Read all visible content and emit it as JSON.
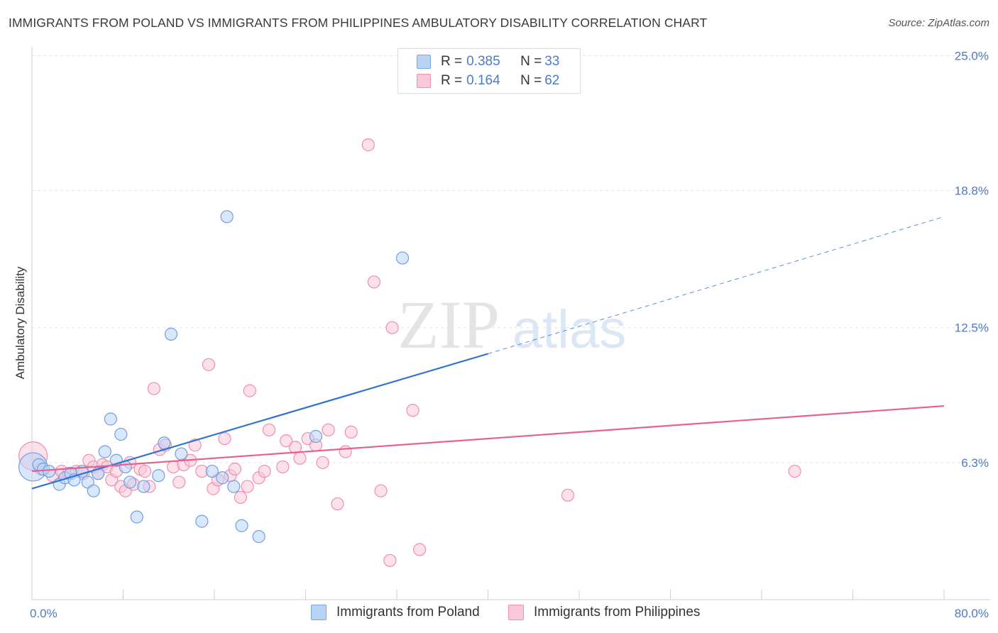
{
  "title": "IMMIGRANTS FROM POLAND VS IMMIGRANTS FROM PHILIPPINES AMBULATORY DISABILITY CORRELATION CHART",
  "source": "Source: ZipAtlas.com",
  "watermark": {
    "zip": "ZIP",
    "atlas": "atlas"
  },
  "legend": {
    "rows": [
      {
        "r_key": "R = ",
        "r_val": "0.385",
        "n_key": "N = ",
        "n_val": "33",
        "fill": "#b9d3f5",
        "stroke": "#7aa6e0"
      },
      {
        "r_key": "R = ",
        "r_val": "0.164",
        "n_key": "N = ",
        "n_val": "62",
        "fill": "#f9c9d8",
        "stroke": "#ee92ae"
      }
    ]
  },
  "bottom_legend": {
    "poland": "Immigrants from Poland",
    "philippines": "Immigrants from Philippines"
  },
  "chart_data": {
    "type": "scatter",
    "xlabel": "",
    "ylabel": "Ambulatory Disability",
    "xlim": [
      0,
      80
    ],
    "ylim": [
      0,
      25.6
    ],
    "x_tick_labels": [
      {
        "value": 0,
        "label": "0.0%"
      },
      {
        "value": 80,
        "label": "80.0%"
      }
    ],
    "y_tick_labels": [
      {
        "value": 6.3,
        "label": "6.3%"
      },
      {
        "value": 12.5,
        "label": "12.5%"
      },
      {
        "value": 18.8,
        "label": "18.8%"
      },
      {
        "value": 25.0,
        "label": "25.0%"
      }
    ],
    "colors": {
      "poland_fill": "#b9d3f5",
      "poland_stroke": "#6f9fe0",
      "poland_line": "#2f74d0",
      "phil_fill": "#f9c9d8",
      "phil_stroke": "#ee8fae",
      "phil_line": "#e5628f",
      "grid": "#e3e3e3",
      "tick": "#4a7bc8"
    },
    "series": [
      {
        "name": "Immigrants from Poland",
        "trend": {
          "x0": 0,
          "y0": 5.1,
          "x1": 40,
          "y1": 11.3,
          "dash_to_x": 80,
          "dash_to_y": 17.6
        },
        "points": [
          {
            "x": 0.1,
            "y": 6.1,
            "big": true
          },
          {
            "x": 0.6,
            "y": 6.2
          },
          {
            "x": 1.0,
            "y": 6.0
          },
          {
            "x": 1.5,
            "y": 5.9
          },
          {
            "x": 2.4,
            "y": 5.3
          },
          {
            "x": 2.9,
            "y": 5.6
          },
          {
            "x": 3.4,
            "y": 5.8
          },
          {
            "x": 3.7,
            "y": 5.5
          },
          {
            "x": 4.4,
            "y": 5.9
          },
          {
            "x": 4.9,
            "y": 5.4
          },
          {
            "x": 5.4,
            "y": 5.0
          },
          {
            "x": 5.8,
            "y": 5.8
          },
          {
            "x": 6.4,
            "y": 6.8
          },
          {
            "x": 6.9,
            "y": 8.3
          },
          {
            "x": 7.4,
            "y": 6.4
          },
          {
            "x": 7.8,
            "y": 7.6
          },
          {
            "x": 8.2,
            "y": 6.1
          },
          {
            "x": 8.6,
            "y": 5.4
          },
          {
            "x": 9.2,
            "y": 3.8
          },
          {
            "x": 9.8,
            "y": 5.2
          },
          {
            "x": 11.1,
            "y": 5.7
          },
          {
            "x": 11.6,
            "y": 7.2
          },
          {
            "x": 12.2,
            "y": 12.2
          },
          {
            "x": 13.1,
            "y": 6.7
          },
          {
            "x": 14.9,
            "y": 3.6
          },
          {
            "x": 15.8,
            "y": 5.9
          },
          {
            "x": 16.7,
            "y": 5.6
          },
          {
            "x": 17.1,
            "y": 17.6
          },
          {
            "x": 17.7,
            "y": 5.2
          },
          {
            "x": 18.4,
            "y": 3.4
          },
          {
            "x": 19.9,
            "y": 2.9
          },
          {
            "x": 24.9,
            "y": 7.5
          },
          {
            "x": 32.5,
            "y": 15.7
          }
        ]
      },
      {
        "name": "Immigrants from Philippines",
        "trend": {
          "x0": 0,
          "y0": 5.9,
          "x1": 80,
          "y1": 8.9
        },
        "points": [
          {
            "x": 0.1,
            "y": 6.6,
            "big": true
          },
          {
            "x": 0.8,
            "y": 6.0
          },
          {
            "x": 1.8,
            "y": 5.7
          },
          {
            "x": 2.6,
            "y": 5.9
          },
          {
            "x": 3.2,
            "y": 5.8
          },
          {
            "x": 3.9,
            "y": 5.9
          },
          {
            "x": 4.5,
            "y": 5.8
          },
          {
            "x": 5.0,
            "y": 6.4
          },
          {
            "x": 5.4,
            "y": 6.1
          },
          {
            "x": 5.8,
            "y": 5.8
          },
          {
            "x": 6.2,
            "y": 6.2
          },
          {
            "x": 6.6,
            "y": 6.1
          },
          {
            "x": 7.0,
            "y": 5.5
          },
          {
            "x": 7.4,
            "y": 5.9
          },
          {
            "x": 7.8,
            "y": 5.2
          },
          {
            "x": 8.2,
            "y": 5.0
          },
          {
            "x": 8.6,
            "y": 6.3
          },
          {
            "x": 8.9,
            "y": 5.3
          },
          {
            "x": 9.5,
            "y": 6.0
          },
          {
            "x": 9.9,
            "y": 5.9
          },
          {
            "x": 10.3,
            "y": 5.2
          },
          {
            "x": 10.7,
            "y": 9.7
          },
          {
            "x": 11.2,
            "y": 6.9
          },
          {
            "x": 11.7,
            "y": 7.1
          },
          {
            "x": 12.4,
            "y": 6.1
          },
          {
            "x": 12.9,
            "y": 5.4
          },
          {
            "x": 13.3,
            "y": 6.2
          },
          {
            "x": 13.9,
            "y": 6.4
          },
          {
            "x": 14.3,
            "y": 7.1
          },
          {
            "x": 14.9,
            "y": 5.9
          },
          {
            "x": 15.5,
            "y": 10.8
          },
          {
            "x": 15.9,
            "y": 5.1
          },
          {
            "x": 16.3,
            "y": 5.5
          },
          {
            "x": 16.9,
            "y": 7.4
          },
          {
            "x": 17.4,
            "y": 5.7
          },
          {
            "x": 17.8,
            "y": 6.0
          },
          {
            "x": 18.3,
            "y": 4.7
          },
          {
            "x": 18.9,
            "y": 5.2
          },
          {
            "x": 19.1,
            "y": 9.6
          },
          {
            "x": 19.9,
            "y": 5.6
          },
          {
            "x": 20.4,
            "y": 5.9
          },
          {
            "x": 20.8,
            "y": 7.8
          },
          {
            "x": 22.0,
            "y": 6.1
          },
          {
            "x": 22.3,
            "y": 7.3
          },
          {
            "x": 23.1,
            "y": 7.0
          },
          {
            "x": 23.5,
            "y": 6.5
          },
          {
            "x": 24.2,
            "y": 7.4
          },
          {
            "x": 24.9,
            "y": 7.1
          },
          {
            "x": 25.5,
            "y": 6.3
          },
          {
            "x": 26.0,
            "y": 7.8
          },
          {
            "x": 26.8,
            "y": 4.4
          },
          {
            "x": 27.5,
            "y": 6.8
          },
          {
            "x": 28.0,
            "y": 7.7
          },
          {
            "x": 29.5,
            "y": 20.9
          },
          {
            "x": 30.0,
            "y": 14.6
          },
          {
            "x": 30.6,
            "y": 5.0
          },
          {
            "x": 31.4,
            "y": 1.8
          },
          {
            "x": 31.6,
            "y": 12.5
          },
          {
            "x": 33.4,
            "y": 8.7
          },
          {
            "x": 34.0,
            "y": 2.3
          },
          {
            "x": 47.0,
            "y": 4.8
          },
          {
            "x": 66.9,
            "y": 5.9
          }
        ]
      }
    ]
  }
}
